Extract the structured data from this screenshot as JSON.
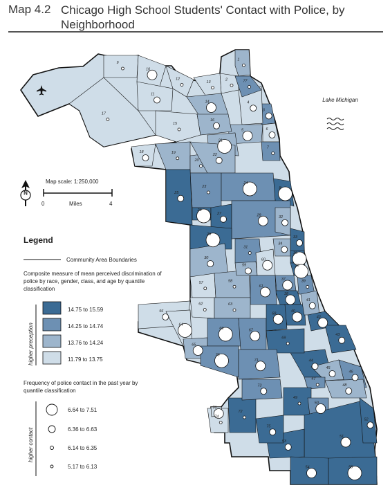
{
  "header": {
    "map_number": "Map 4.2",
    "title": "Chicago High School Students' Contact with Police, by Neighborhood"
  },
  "lake_label": "Lake Michigan",
  "scale": {
    "label": "Map scale: 1:250,000",
    "start": "0",
    "unit": "Miles",
    "end": "4"
  },
  "north_label": "N",
  "legend": {
    "title": "Legend",
    "boundary_label": "Community Area Boundaries",
    "fill_title": "Composite measure of mean perceived discrimination of police by race, gender, class, and age by quantile classification",
    "fill_axis_label": "higher preception",
    "fill_classes": [
      {
        "label": "14.75 to 15.59",
        "color": "#3b6b94"
      },
      {
        "label": "14.25 to 14.74",
        "color": "#6d90b3"
      },
      {
        "label": "13.76 to 14.24",
        "color": "#9db5cc"
      },
      {
        "label": "11.79 to 13.75",
        "color": "#cfdde8"
      }
    ],
    "circle_title": "Frequency of police contact in the past year by quantile classification",
    "circle_axis_label": "higher contact",
    "circle_classes": [
      {
        "label": "6.64 to 7.51"
      },
      {
        "label": "6.36 to 6.63"
      },
      {
        "label": "6.14 to 6.35"
      },
      {
        "label": "5.17 to 6.13"
      }
    ]
  },
  "areas": [
    {
      "label": "1",
      "cls": 2,
      "circle": 3
    },
    {
      "label": "2",
      "cls": 3,
      "circle": 3
    },
    {
      "label": "3",
      "cls": 1,
      "circle": 2
    },
    {
      "label": "4",
      "cls": 3,
      "circle": 2
    },
    {
      "label": "5",
      "cls": 2,
      "circle": 1
    },
    {
      "label": "6",
      "cls": 3,
      "circle": 2
    },
    {
      "label": "7",
      "cls": 1,
      "circle": 3
    },
    {
      "label": "8",
      "cls": 0,
      "circle": 0
    },
    {
      "label": "9",
      "cls": 3,
      "circle": 3
    },
    {
      "label": "10",
      "cls": 3,
      "circle": 1
    },
    {
      "label": "11",
      "cls": 3,
      "circle": 2
    },
    {
      "label": "12",
      "cls": 3,
      "circle": 3
    },
    {
      "label": "13",
      "cls": 3,
      "circle": 3
    },
    {
      "label": "14",
      "cls": 2,
      "circle": 1
    },
    {
      "label": "15",
      "cls": 3,
      "circle": 3
    },
    {
      "label": "16",
      "cls": 2,
      "circle": 2
    },
    {
      "label": "17",
      "cls": 3,
      "circle": 3
    },
    {
      "label": "18",
      "cls": 3,
      "circle": 2
    },
    {
      "label": "19",
      "cls": 2,
      "circle": 3
    },
    {
      "label": "20",
      "cls": 2,
      "circle": 3
    },
    {
      "label": "21",
      "cls": 2,
      "circle": 0
    },
    {
      "label": "22",
      "cls": 2,
      "circle": 2
    },
    {
      "label": "23",
      "cls": 1,
      "circle": 3
    },
    {
      "label": "24",
      "cls": 1,
      "circle": 0
    },
    {
      "label": "25",
      "cls": 0,
      "circle": 2
    },
    {
      "label": "26",
      "cls": 0,
      "circle": 0
    },
    {
      "label": "27",
      "cls": 0,
      "circle": 2
    },
    {
      "label": "28",
      "cls": 1,
      "circle": 1
    },
    {
      "label": "29",
      "cls": 0,
      "circle": 0
    },
    {
      "label": "30",
      "cls": 2,
      "circle": 2
    },
    {
      "label": "31",
      "cls": 1,
      "circle": 3
    },
    {
      "label": "32",
      "cls": 2,
      "circle": 2
    },
    {
      "label": "33",
      "cls": 0,
      "circle": 2
    },
    {
      "label": "34",
      "cls": 2,
      "circle": 2
    },
    {
      "label": "35",
      "cls": 0,
      "circle": 0
    },
    {
      "label": "36",
      "cls": 0,
      "circle": 0
    },
    {
      "label": "37",
      "cls": 1,
      "circle": 1
    },
    {
      "label": "38",
      "cls": 0,
      "circle": 1
    },
    {
      "label": "39",
      "cls": 1,
      "circle": 3
    },
    {
      "label": "40",
      "cls": 0,
      "circle": 1
    },
    {
      "label": "41",
      "cls": 2,
      "circle": 2
    },
    {
      "label": "42",
      "cls": 0,
      "circle": 1
    },
    {
      "label": "43",
      "cls": 0,
      "circle": 2
    },
    {
      "label": "44",
      "cls": 0,
      "circle": 2
    },
    {
      "label": "45",
      "cls": 2,
      "circle": 2
    },
    {
      "label": "46",
      "cls": 1,
      "circle": 2
    },
    {
      "label": "47",
      "cls": 1,
      "circle": 3
    },
    {
      "label": "48",
      "cls": 2,
      "circle": 2
    },
    {
      "label": "49",
      "cls": 0,
      "circle": 3
    },
    {
      "label": "50",
      "cls": 1,
      "circle": 1
    },
    {
      "label": "51",
      "cls": 0,
      "circle": 1
    },
    {
      "label": "52",
      "cls": 0,
      "circle": 2
    },
    {
      "label": "53",
      "cls": 0,
      "circle": 2
    },
    {
      "label": "54",
      "cls": 0,
      "circle": 1
    },
    {
      "label": "55",
      "cls": 0,
      "circle": 0
    },
    {
      "label": "56",
      "cls": 3,
      "circle": 2
    },
    {
      "label": "57",
      "cls": 3,
      "circle": 3
    },
    {
      "label": "58",
      "cls": 2,
      "circle": 3
    },
    {
      "label": "59",
      "cls": 2,
      "circle": 2
    },
    {
      "label": "60",
      "cls": 3,
      "circle": 1
    },
    {
      "label": "61",
      "cls": 1,
      "circle": 1
    },
    {
      "label": "62",
      "cls": 3,
      "circle": 3
    },
    {
      "label": "63",
      "cls": 2,
      "circle": 3
    },
    {
      "label": "64",
      "cls": 3,
      "circle": 0
    },
    {
      "label": "65",
      "cls": 2,
      "circle": 1
    },
    {
      "label": "66",
      "cls": 1,
      "circle": 0
    },
    {
      "label": "67",
      "cls": 1,
      "circle": 1
    },
    {
      "label": "68",
      "cls": 0,
      "circle": 1
    },
    {
      "label": "69",
      "cls": 0,
      "circle": 3
    },
    {
      "label": "70",
      "cls": 1,
      "circle": 0
    },
    {
      "label": "71",
      "cls": 1,
      "circle": 1
    },
    {
      "label": "72",
      "cls": 0,
      "circle": 3
    },
    {
      "label": "73",
      "cls": 1,
      "circle": 2
    },
    {
      "label": "74",
      "cls": 3,
      "circle": 3
    },
    {
      "label": "75",
      "cls": 0,
      "circle": 2
    },
    {
      "label": "76",
      "cls": 3,
      "circle": 1
    },
    {
      "label": "77",
      "cls": 1,
      "circle": 3
    }
  ]
}
